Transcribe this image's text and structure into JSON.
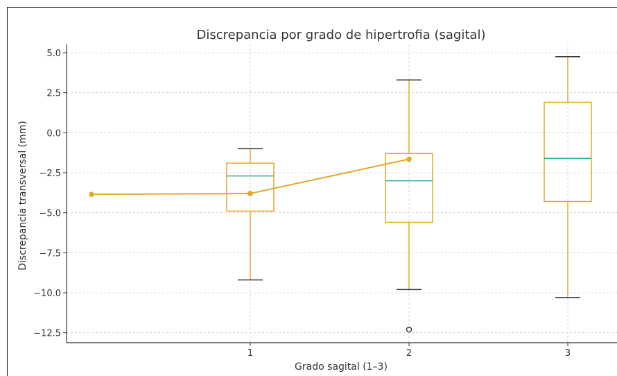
{
  "chart_data": {
    "type": "box",
    "title": "Discrepancia por grado de hipertrofia (sagital)",
    "xlabel": "Grado sagital (1–3)",
    "ylabel": "Discrepancia transversal (mm)",
    "ylim": [
      -13.2,
      5.5
    ],
    "grid": true,
    "categories": [
      "1",
      "2",
      "3"
    ],
    "x_positions": [
      1,
      2,
      3
    ],
    "yticks": [
      5.0,
      2.5,
      0.0,
      -2.5,
      -5.0,
      -7.5,
      -10.0,
      -12.5
    ],
    "ytick_labels": [
      "5.0",
      "2.5",
      "0.0",
      "−2.5",
      "−5.0",
      "−7.5",
      "−10.0",
      "−12.5"
    ],
    "boxes": [
      {
        "category": "1",
        "whisker_low": -9.2,
        "q1": -4.9,
        "median": -2.7,
        "q3": -1.9,
        "whisker_high": -1.0,
        "outliers": []
      },
      {
        "category": "2",
        "whisker_low": -9.8,
        "q1": -5.6,
        "median": -3.0,
        "q3": -1.3,
        "whisker_high": 3.3,
        "outliers": [
          -12.3
        ]
      },
      {
        "category": "3",
        "whisker_low": -10.3,
        "q1": -4.3,
        "median": -1.6,
        "q3": 1.9,
        "whisker_high": 4.75,
        "outliers": []
      }
    ],
    "line_series": {
      "x": [
        0,
        1,
        2
      ],
      "values": [
        -3.85,
        -3.8,
        -1.65
      ]
    },
    "colors": {
      "box": "#E3A82B",
      "median": "#3AAE9A",
      "whisker_cap": "#333333",
      "line": "#E3A82B",
      "grid": "#cccccc",
      "axis": "#333333"
    }
  }
}
